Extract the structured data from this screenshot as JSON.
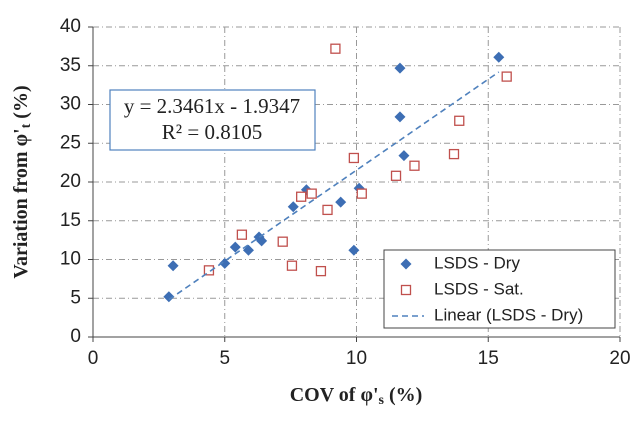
{
  "chart_data": {
    "type": "scatter",
    "x_label": "COV of φ'",
    "x_label_sub": "s",
    "x_label_suffix": " (%)",
    "y_label": "Variation  from φ'",
    "y_label_sub": "t",
    "y_label_suffix": " (%)",
    "xlim": [
      0,
      20
    ],
    "xticks": [
      0,
      5,
      10,
      15,
      20
    ],
    "ylim": [
      0,
      40
    ],
    "yticks": [
      0,
      5,
      10,
      15,
      20,
      25,
      30,
      35,
      40
    ],
    "grid": true,
    "legend": "lower right",
    "series": [
      {
        "name": "LSDS - Dry",
        "color": "#3d6eb4",
        "marker": "diamond",
        "x": [
          2.88,
          3.04,
          5.0,
          5.4,
          5.9,
          6.3,
          6.4,
          7.6,
          8.1,
          9.4,
          9.9,
          10.1,
          11.65,
          11.65,
          11.8,
          15.4
        ],
        "values": [
          5.2,
          9.2,
          9.5,
          11.6,
          11.2,
          12.9,
          12.4,
          16.8,
          19.0,
          17.4,
          11.2,
          19.2,
          34.7,
          28.4,
          23.4,
          36.1
        ]
      },
      {
        "name": "LSDS - Sat.",
        "color": "#c0504d",
        "marker": "square",
        "x": [
          4.4,
          5.65,
          7.2,
          7.55,
          7.9,
          8.3,
          8.65,
          8.9,
          9.2,
          9.9,
          10.2,
          11.5,
          12.2,
          13.7,
          13.9,
          15.7
        ],
        "values": [
          8.6,
          13.2,
          12.3,
          9.2,
          18.1,
          18.5,
          8.5,
          16.4,
          37.2,
          23.1,
          18.5,
          20.8,
          22.1,
          23.6,
          27.9,
          33.6
        ]
      }
    ],
    "trendline": {
      "name": "Linear (LSDS - Dry)",
      "color": "#4f81bd",
      "slope": 2.3461,
      "intercept": -1.9347,
      "x_range": [
        2.88,
        15.4
      ],
      "equation": "y = 2.3461x - 1.9347",
      "r2_label": "R² = 0.8105"
    }
  }
}
